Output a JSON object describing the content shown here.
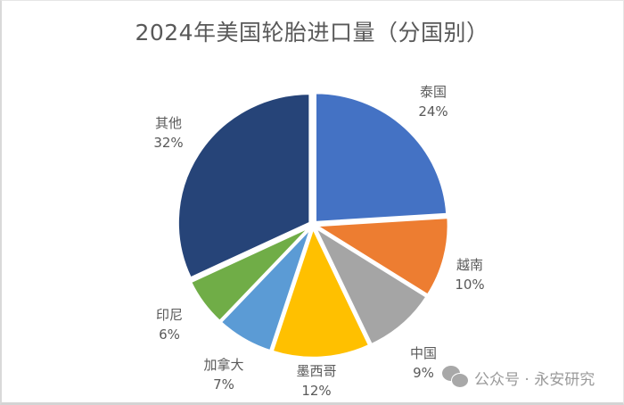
{
  "title": "2024年美国轮胎进口量（分国别）",
  "watermark": "公众号 · 永安研究",
  "labels": [
    {
      "name": "泰国",
      "pct": "24%"
    },
    {
      "name": "越南",
      "pct": "10%"
    },
    {
      "name": "中国",
      "pct": "9%"
    },
    {
      "name": "墨西哥",
      "pct": "12%"
    },
    {
      "name": "加拿大",
      "pct": "7%"
    },
    {
      "name": "印尼",
      "pct": "6%"
    },
    {
      "name": "其他",
      "pct": "32%"
    }
  ],
  "chart_data": {
    "type": "pie",
    "title": "2024年美国轮胎进口量（分国别）",
    "categories": [
      "泰国",
      "越南",
      "中国",
      "墨西哥",
      "加拿大",
      "印尼",
      "其他"
    ],
    "values": [
      24,
      10,
      9,
      12,
      7,
      6,
      32
    ],
    "unit": "%",
    "colors": [
      "#4472c4",
      "#ed7d31",
      "#a5a5a5",
      "#ffc000",
      "#5b9bd5",
      "#70ad47",
      "#264478"
    ],
    "start_angle": "12 o'clock, clockwise",
    "legend": "none (data labels with category name and percentage)"
  }
}
